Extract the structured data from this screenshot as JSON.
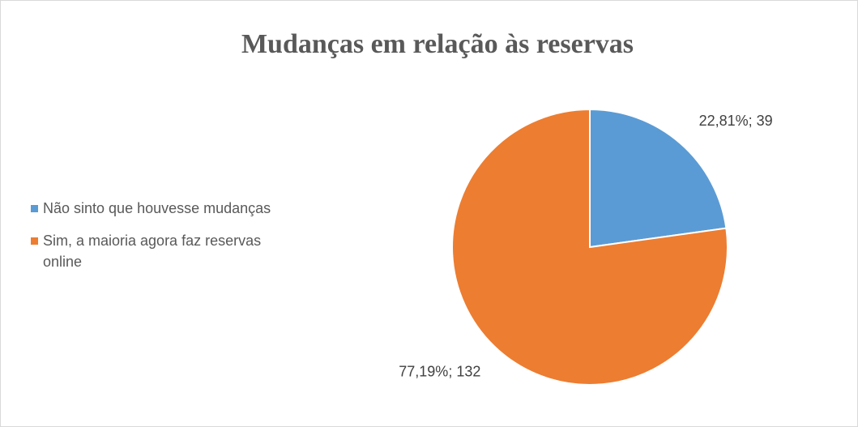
{
  "chart_data": {
    "type": "pie",
    "title": "Mudanças em relação às reservas",
    "categories": [
      "Não sinto que houvesse mudanças",
      "Sim, a maioria agora faz reservas online"
    ],
    "values": [
      39,
      132
    ],
    "value_labels": [
      "22,81%; 39",
      "77,19%; 132"
    ],
    "colors": [
      "#5b9bd5",
      "#ed7d31"
    ],
    "legend": "left"
  }
}
